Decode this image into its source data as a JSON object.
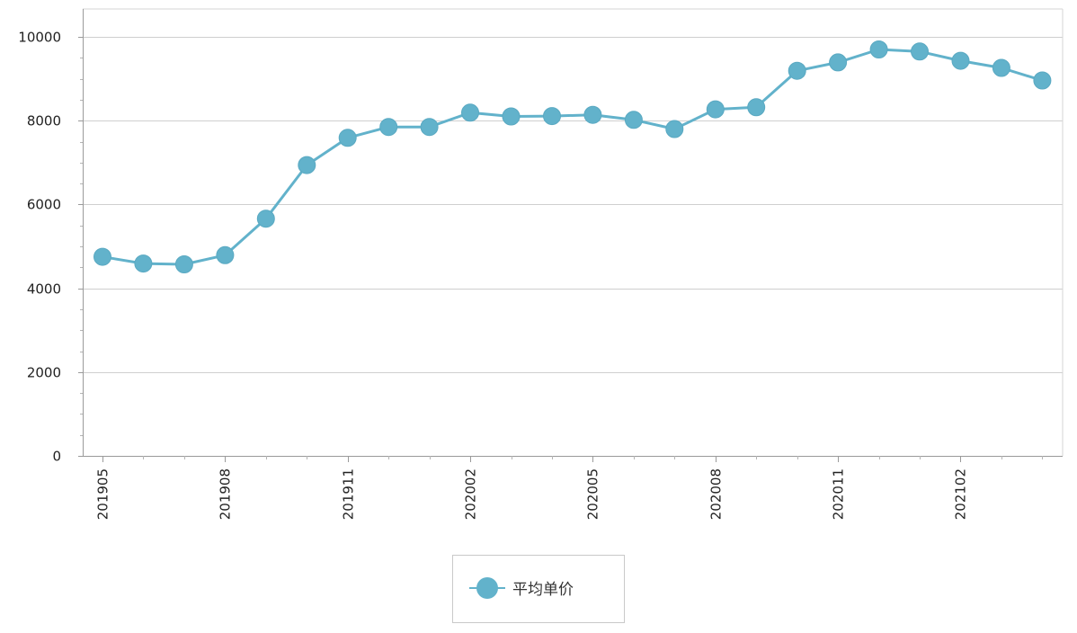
{
  "chart_data": {
    "type": "line",
    "title": "",
    "xlabel": "",
    "ylabel": "",
    "ylim": [
      0,
      10000
    ],
    "yticks": [
      0,
      2000,
      4000,
      6000,
      8000,
      10000
    ],
    "grid": true,
    "legend_position": "bottom-center",
    "x": [
      "201905",
      "201906",
      "201907",
      "201908",
      "201909",
      "201910",
      "201911",
      "201912",
      "202001",
      "202002",
      "202003",
      "202004",
      "202005",
      "202006",
      "202007",
      "202008",
      "202009",
      "202010",
      "202011",
      "202012",
      "202101",
      "202102",
      "202103",
      "202104"
    ],
    "x_tick_labels": [
      "201905",
      "201908",
      "201911",
      "202002",
      "202005",
      "202008",
      "202011",
      "202102"
    ],
    "series": [
      {
        "name": "平均单价",
        "color": "#62b2cb",
        "values": [
          4750,
          4590,
          4570,
          4790,
          5660,
          6940,
          7590,
          7850,
          7850,
          8190,
          8100,
          8110,
          8140,
          8020,
          7800,
          8270,
          8320,
          9190,
          9390,
          9700,
          9650,
          9430,
          9260,
          8960
        ]
      }
    ]
  }
}
